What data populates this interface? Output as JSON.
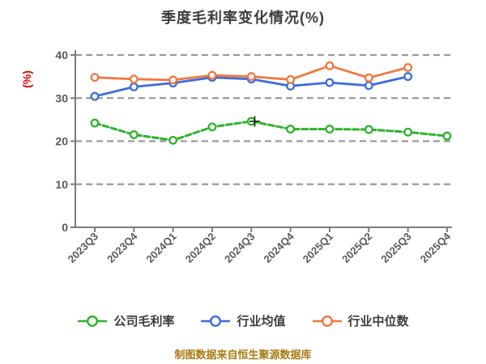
{
  "meta": {
    "caption": "制图数据来自恒生聚源数据库"
  },
  "palette": {
    "title_text": "#3d3d3d",
    "tick_text": "#595959",
    "grid_line": "#9a9a9a",
    "axis_line": "#7d7d7d",
    "ylabel_red": "#e60000",
    "caption_gold": "#a87b12",
    "marker_fill": "#ffffff",
    "cursor": "#1a1a1a",
    "legend_text": "#3d3d3d"
  },
  "chart_data": {
    "type": "line",
    "title": "季度毛利率变化情况(%)",
    "ylabel": "(%)",
    "categories": [
      "2023Q3",
      "2023Q4",
      "2024Q1",
      "2024Q2",
      "2024Q3",
      "2024Q4",
      "2025Q1",
      "2025Q2",
      "2025Q3",
      "2025Q4"
    ],
    "series": [
      {
        "key": "company-gross-margin",
        "name": "公司毛利率",
        "color": "#2db32d",
        "line_style": "dashed",
        "values": [
          24.2,
          21.5,
          20.2,
          23.3,
          24.6,
          22.8,
          22.8,
          22.7,
          22.1,
          21.2
        ]
      },
      {
        "key": "industry-average",
        "name": "行业均值",
        "color": "#3e6cdd",
        "line_style": "solid",
        "values": [
          30.4,
          32.6,
          33.5,
          34.8,
          34.4,
          32.8,
          33.6,
          32.9,
          35.0,
          null
        ]
      },
      {
        "key": "industry-median",
        "name": "行业中位数",
        "color": "#f0783f",
        "line_style": "solid",
        "values": [
          34.8,
          34.4,
          34.2,
          35.3,
          35.0,
          34.3,
          37.5,
          34.7,
          37.1,
          null
        ]
      }
    ],
    "ylim": [
      0,
      40
    ],
    "yticks": [
      0,
      10,
      20,
      30,
      40
    ],
    "x_tick_rotation": 45,
    "grid": "horizontal-dashed",
    "legend_position": "bottom"
  }
}
